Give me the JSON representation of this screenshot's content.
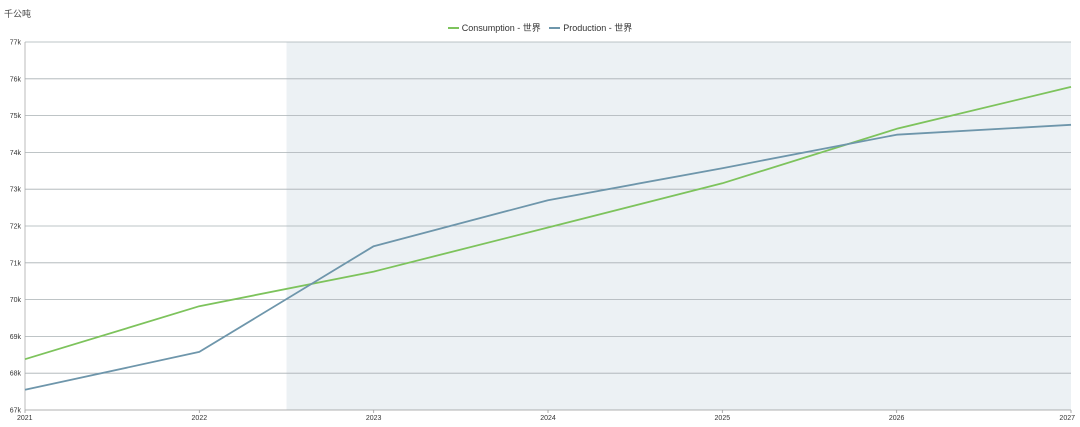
{
  "unit_label": "千公吨",
  "chart_data": {
    "type": "line",
    "title": "",
    "xlabel": "",
    "ylabel": "千公吨",
    "x": [
      2021,
      2022,
      2023,
      2024,
      2025,
      2026,
      2027
    ],
    "x_tick_labels": [
      "2021",
      "2022",
      "2023",
      "2024",
      "2025",
      "2026",
      "2027"
    ],
    "ylim": [
      67000,
      77000
    ],
    "y_ticks": [
      67000,
      68000,
      69000,
      70000,
      71000,
      72000,
      73000,
      74000,
      75000,
      76000,
      77000
    ],
    "y_tick_labels": [
      "67k",
      "68k",
      "69k",
      "70k",
      "71k",
      "72k",
      "73k",
      "74k",
      "75k",
      "76k",
      "77k"
    ],
    "grid": true,
    "legend_position": "top-center",
    "forecast_band": {
      "x_start": 2022.5,
      "x_end": 2027,
      "color": "#ecf1f4"
    },
    "series": [
      {
        "name": "Consumption - 世界",
        "color": "#7dc35c",
        "values": [
          68380,
          69820,
          70760,
          71960,
          73160,
          74640,
          75780
        ]
      },
      {
        "name": "Production - 世界",
        "color": "#6e96ab",
        "values": [
          67550,
          68580,
          71450,
          72700,
          73570,
          74480,
          74750
        ]
      }
    ]
  }
}
